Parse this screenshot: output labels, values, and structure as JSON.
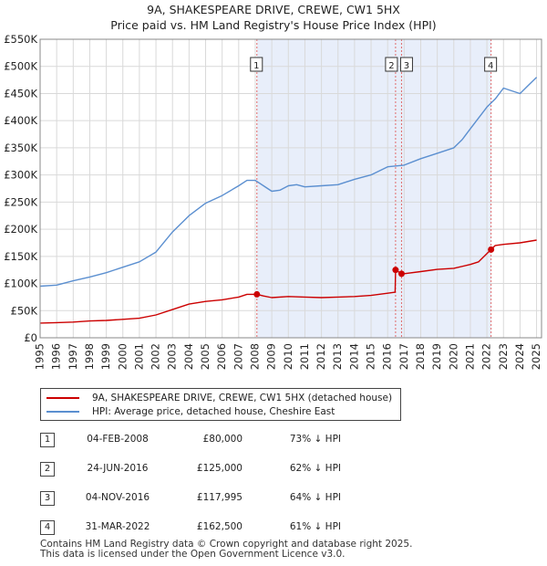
{
  "title_line1": "9A, SHAKESPEARE DRIVE, CREWE, CW1 5HX",
  "title_line2": "Price paid vs. HM Land Registry's House Price Index (HPI)",
  "colors": {
    "property": "#cc0000",
    "hpi": "#5b8fd0",
    "shade": "#e8eefa",
    "vline": "#e06a6a"
  },
  "legend": {
    "property_label": "9A, SHAKESPEARE DRIVE, CREWE, CW1 5HX (detached house)",
    "hpi_label": "HPI: Average price, detached house, Cheshire East"
  },
  "sales": [
    {
      "num": "1",
      "date": "04-FEB-2008",
      "price": "£80,000",
      "hpi": "73% ↓ HPI"
    },
    {
      "num": "2",
      "date": "24-JUN-2016",
      "price": "£125,000",
      "hpi": "62% ↓ HPI"
    },
    {
      "num": "3",
      "date": "04-NOV-2016",
      "price": "£117,995",
      "hpi": "64% ↓ HPI"
    },
    {
      "num": "4",
      "date": "31-MAR-2022",
      "price": "£162,500",
      "hpi": "61% ↓ HPI"
    }
  ],
  "footer_line1": "Contains HM Land Registry data © Crown copyright and database right 2025.",
  "footer_line2": "This data is licensed under the Open Government Licence v3.0.",
  "chart_data": {
    "type": "line",
    "xlim": [
      1995,
      2025.3
    ],
    "ylim": [
      0,
      550000
    ],
    "yticks": [
      {
        "value": 0,
        "label": "£0"
      },
      {
        "value": 50000,
        "label": "£50K"
      },
      {
        "value": 100000,
        "label": "£100K"
      },
      {
        "value": 150000,
        "label": "£150K"
      },
      {
        "value": 200000,
        "label": "£200K"
      },
      {
        "value": 250000,
        "label": "£250K"
      },
      {
        "value": 300000,
        "label": "£300K"
      },
      {
        "value": 350000,
        "label": "£350K"
      },
      {
        "value": 400000,
        "label": "£400K"
      },
      {
        "value": 450000,
        "label": "£450K"
      },
      {
        "value": 500000,
        "label": "£500K"
      },
      {
        "value": 550000,
        "label": "£550K"
      }
    ],
    "xticks": [
      1995,
      1996,
      1997,
      1998,
      1999,
      2000,
      2001,
      2002,
      2003,
      2004,
      2005,
      2006,
      2007,
      2008,
      2009,
      2010,
      2011,
      2012,
      2013,
      2014,
      2015,
      2016,
      2017,
      2018,
      2019,
      2020,
      2021,
      2022,
      2023,
      2024,
      2025
    ],
    "grid": true,
    "shaded_range": [
      2008.1,
      2022.25
    ],
    "sale_markers": [
      {
        "label": "1",
        "x": 2008.1,
        "y": 80000
      },
      {
        "label": "2",
        "x": 2016.48,
        "y": 125000
      },
      {
        "label": "3",
        "x": 2016.84,
        "y": 117995
      },
      {
        "label": "4",
        "x": 2022.25,
        "y": 162500
      }
    ],
    "series": [
      {
        "name": "HPI: Average price, detached house, Cheshire East",
        "x": [
          1995,
          1996,
          1997,
          1998,
          1999,
          2000,
          2001,
          2002,
          2003,
          2004,
          2005,
          2006,
          2007,
          2007.5,
          2008,
          2008.5,
          2009,
          2009.5,
          2010,
          2010.5,
          2011,
          2012,
          2013,
          2014,
          2015,
          2016,
          2017,
          2018,
          2019,
          2020,
          2020.5,
          2021,
          2021.5,
          2022,
          2022.5,
          2023,
          2023.5,
          2024,
          2024.5,
          2025
        ],
        "values": [
          95000,
          97000,
          105000,
          112000,
          120000,
          130000,
          140000,
          158000,
          195000,
          225000,
          248000,
          262000,
          280000,
          290000,
          290000,
          280000,
          270000,
          272000,
          280000,
          282000,
          278000,
          280000,
          282000,
          292000,
          300000,
          315000,
          318000,
          330000,
          340000,
          350000,
          365000,
          385000,
          405000,
          425000,
          440000,
          460000,
          455000,
          450000,
          465000,
          480000
        ]
      },
      {
        "name": "9A, SHAKESPEARE DRIVE, CREWE, CW1 5HX (detached house)",
        "x": [
          1995,
          1996,
          1997,
          1998,
          1999,
          2000,
          2001,
          2002,
          2003,
          2004,
          2005,
          2006,
          2007,
          2007.5,
          2008.1,
          2008.5,
          2009,
          2010,
          2011,
          2012,
          2013,
          2014,
          2015,
          2016,
          2016.45,
          2016.48,
          2016.84,
          2017,
          2018,
          2019,
          2020,
          2021,
          2021.5,
          2022.25,
          2022.5,
          2023,
          2024,
          2025
        ],
        "values": [
          27000,
          28000,
          29000,
          31000,
          32000,
          34000,
          36000,
          42000,
          52000,
          62000,
          67000,
          70000,
          75000,
          80000,
          80000,
          77000,
          74000,
          76000,
          75000,
          74000,
          75000,
          76000,
          78000,
          82000,
          84000,
          125000,
          117995,
          118000,
          122000,
          126000,
          128000,
          135000,
          140000,
          162500,
          170000,
          172000,
          175000,
          180000
        ]
      }
    ]
  }
}
